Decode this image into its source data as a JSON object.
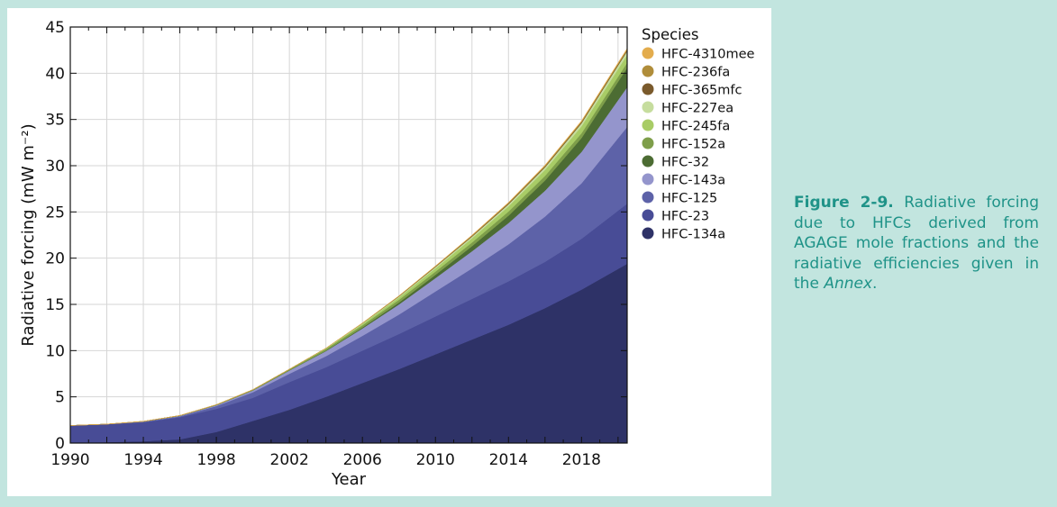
{
  "caption": {
    "label": "Figure 2-9.",
    "text": "Radiative forcing due to HFCs derived from AGAGE mole fractions and the radiative efficiencies given in the",
    "emphasis": "Annex",
    "end": "."
  },
  "chart_data": {
    "type": "area",
    "stacked": true,
    "xlabel": "Year",
    "ylabel": "Radiative forcing (mW m⁻²)",
    "xlim": [
      1990,
      2020.5
    ],
    "ylim": [
      0,
      45
    ],
    "xticks": [
      1990,
      1994,
      1998,
      2002,
      2006,
      2010,
      2014,
      2018
    ],
    "yticks": [
      0,
      5,
      10,
      15,
      20,
      25,
      30,
      35,
      40,
      45
    ],
    "grid": true,
    "legend_title": "Species",
    "legend_position": "right",
    "x": [
      1990,
      1992,
      1994,
      1996,
      1998,
      2000,
      2002,
      2004,
      2006,
      2008,
      2010,
      2012,
      2014,
      2016,
      2018,
      2020.5
    ],
    "series": [
      {
        "name": "HFC-134a",
        "color": "#2e3267",
        "values": [
          0.05,
          0.1,
          0.2,
          0.4,
          1.2,
          2.4,
          3.6,
          5.0,
          6.5,
          8.0,
          9.6,
          11.2,
          12.8,
          14.6,
          16.6,
          19.4
        ]
      },
      {
        "name": "HFC-23",
        "color": "#484c96",
        "values": [
          1.85,
          1.95,
          2.05,
          2.4,
          2.5,
          2.5,
          3.0,
          3.2,
          3.5,
          3.8,
          4.1,
          4.4,
          4.7,
          5.0,
          5.5,
          6.5
        ]
      },
      {
        "name": "HFC-125",
        "color": "#5d62a8",
        "values": [
          0.0,
          0.0,
          0.05,
          0.1,
          0.3,
          0.6,
          0.9,
          1.2,
          1.6,
          2.1,
          2.7,
          3.3,
          4.0,
          4.9,
          6.0,
          8.3
        ]
      },
      {
        "name": "HFC-143a",
        "color": "#9495cc",
        "values": [
          0.0,
          0.0,
          0.03,
          0.05,
          0.1,
          0.2,
          0.35,
          0.55,
          0.8,
          1.1,
          1.45,
          1.85,
          2.3,
          2.8,
          3.4,
          4.3
        ]
      },
      {
        "name": "HFC-32",
        "color": "#4c6c33",
        "values": [
          0.0,
          0.0,
          0.0,
          0.0,
          0.0,
          0.0,
          0.02,
          0.05,
          0.1,
          0.2,
          0.35,
          0.55,
          0.8,
          1.1,
          1.5,
          2.1
        ]
      },
      {
        "name": "HFC-152a",
        "color": "#7e9e4a",
        "values": [
          0.0,
          0.0,
          0.02,
          0.03,
          0.05,
          0.08,
          0.12,
          0.18,
          0.24,
          0.3,
          0.35,
          0.4,
          0.45,
          0.5,
          0.52,
          0.55
        ]
      },
      {
        "name": "HFC-245fa",
        "color": "#a8cc66",
        "values": [
          0.0,
          0.0,
          0.0,
          0.0,
          0.0,
          0.0,
          0.0,
          0.05,
          0.15,
          0.25,
          0.35,
          0.45,
          0.55,
          0.65,
          0.75,
          0.85
        ]
      },
      {
        "name": "HFC-227ea",
        "color": "#c6dd9e",
        "values": [
          0.0,
          0.0,
          0.0,
          0.0,
          0.0,
          0.0,
          0.0,
          0.03,
          0.06,
          0.1,
          0.14,
          0.18,
          0.23,
          0.28,
          0.33,
          0.4
        ]
      },
      {
        "name": "HFC-365mfc",
        "color": "#7a5a2c",
        "values": [
          0.0,
          0.0,
          0.0,
          0.0,
          0.0,
          0.0,
          0.0,
          0.0,
          0.02,
          0.04,
          0.06,
          0.08,
          0.1,
          0.11,
          0.12,
          0.13
        ]
      },
      {
        "name": "HFC-236fa",
        "color": "#b08d3a",
        "values": [
          0.0,
          0.0,
          0.0,
          0.0,
          0.0,
          0.0,
          0.0,
          0.0,
          0.01,
          0.02,
          0.03,
          0.04,
          0.05,
          0.06,
          0.07,
          0.08
        ]
      },
      {
        "name": "HFC-4310mee",
        "color": "#e3ac4d",
        "values": [
          0.0,
          0.0,
          0.0,
          0.0,
          0.0,
          0.0,
          0.0,
          0.0,
          0.01,
          0.02,
          0.03,
          0.04,
          0.05,
          0.06,
          0.07,
          0.08
        ]
      }
    ]
  }
}
